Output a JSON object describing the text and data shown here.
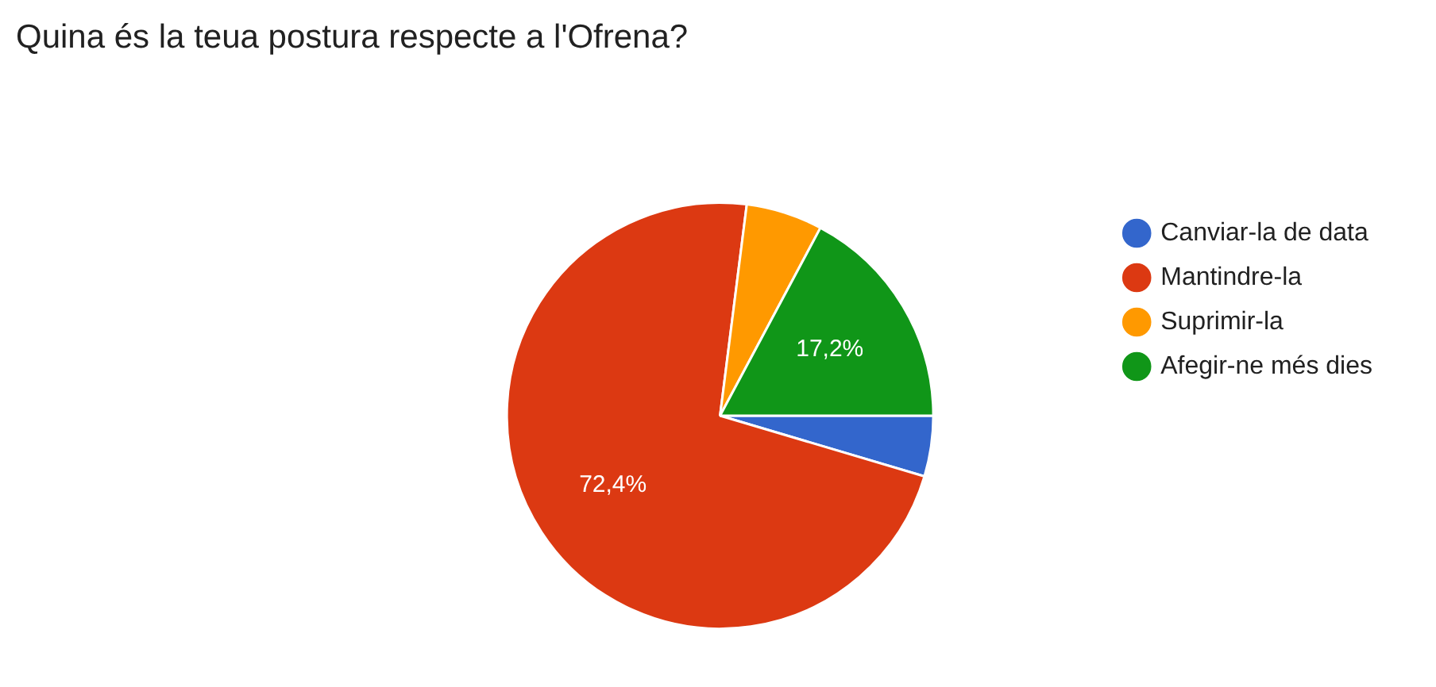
{
  "chart_data": {
    "type": "pie",
    "title": "Quina és la teua postura respecte a l'Ofrena?",
    "categories": [
      "Canviar-la de data",
      "Mantindre-la",
      "Suprimir-la",
      "Afegir-ne més dies"
    ],
    "values": [
      4.6,
      72.4,
      5.8,
      17.2
    ],
    "colors": [
      "#3366cc",
      "#dc3912",
      "#ff9900",
      "#109618"
    ],
    "value_labels": [
      null,
      "72,4%",
      null,
      "17,2%"
    ],
    "legend": "right"
  }
}
